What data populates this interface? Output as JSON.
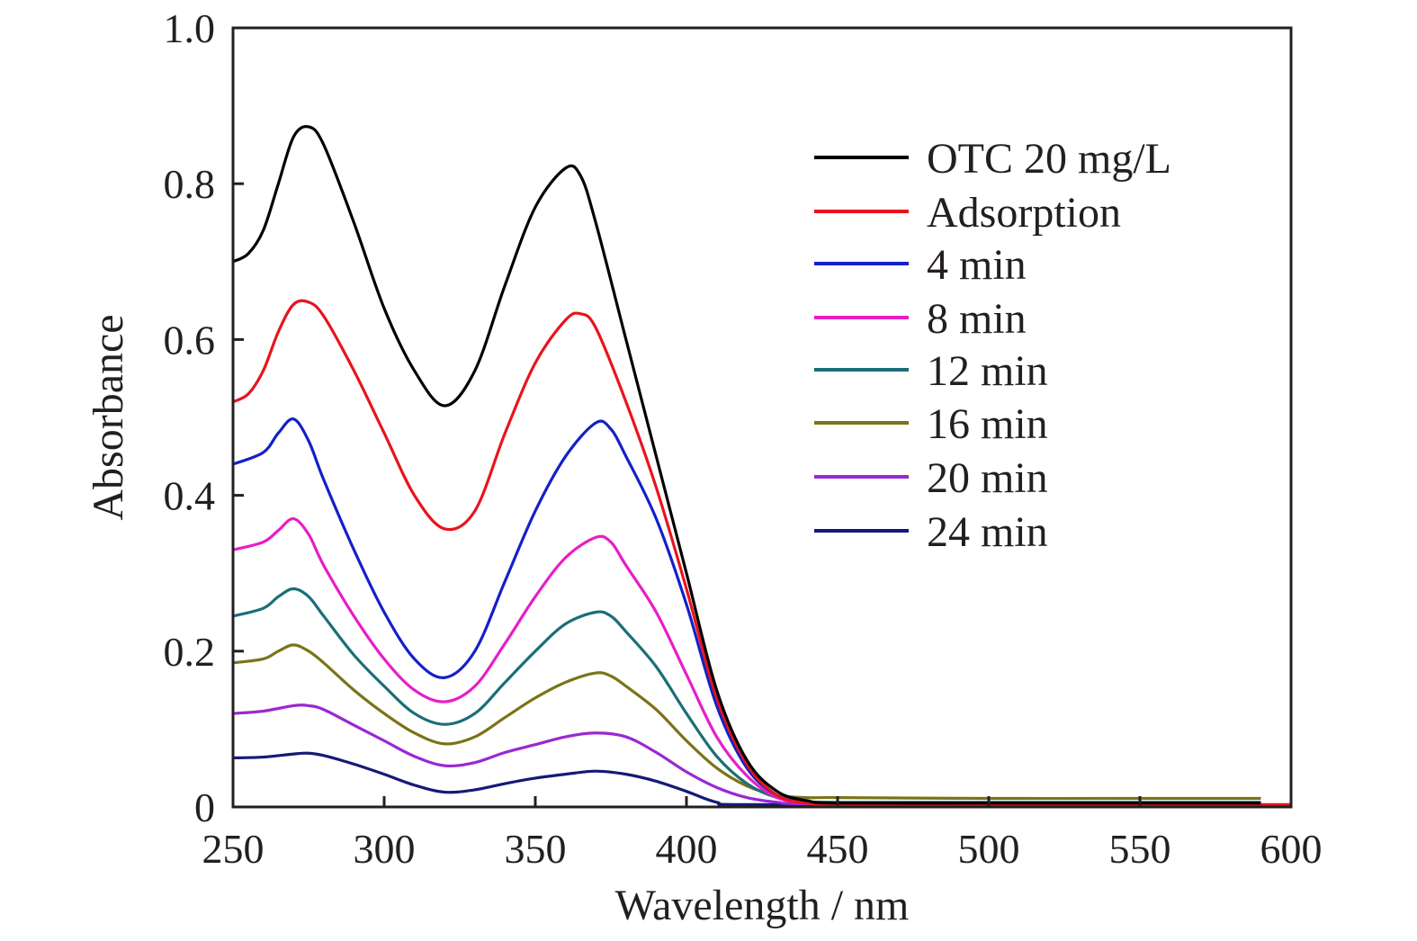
{
  "chart_data": {
    "type": "line",
    "xlabel": "Wavelength / nm",
    "ylabel": "Absorbance",
    "xlim": [
      250,
      600
    ],
    "ylim": [
      0,
      1.0
    ],
    "xticks": [
      250,
      300,
      350,
      400,
      450,
      500,
      550,
      600
    ],
    "xtick_labels": [
      "250",
      "300",
      "350",
      "400",
      "450",
      "500",
      "550",
      "600"
    ],
    "yticks": [
      0,
      0.2,
      0.4,
      0.6,
      0.8,
      1.0
    ],
    "ytick_labels": [
      "0",
      "0.2",
      "0.4",
      "0.6",
      "0.8",
      "1.0"
    ],
    "grid": false,
    "legend_position": "top-right",
    "series": [
      {
        "name": "OTC 20 mg/L",
        "color": "#000000",
        "x": [
          250,
          255,
          260,
          265,
          270,
          275,
          280,
          290,
          300,
          310,
          320,
          330,
          340,
          350,
          360,
          365,
          370,
          380,
          390,
          400,
          410,
          420,
          430,
          440,
          450,
          500,
          550,
          590
        ],
        "y": [
          0.7,
          0.71,
          0.74,
          0.8,
          0.86,
          0.873,
          0.85,
          0.75,
          0.64,
          0.56,
          0.515,
          0.56,
          0.67,
          0.77,
          0.82,
          0.81,
          0.75,
          0.6,
          0.45,
          0.3,
          0.15,
          0.06,
          0.02,
          0.008,
          0.005,
          0.005,
          0.005,
          0.005
        ]
      },
      {
        "name": "Adsorption",
        "color": "#e8141c",
        "x": [
          250,
          255,
          260,
          265,
          270,
          275,
          280,
          290,
          300,
          310,
          320,
          330,
          340,
          350,
          360,
          365,
          370,
          380,
          390,
          400,
          410,
          420,
          430,
          440,
          450,
          500,
          550,
          600
        ],
        "y": [
          0.52,
          0.53,
          0.56,
          0.61,
          0.645,
          0.648,
          0.63,
          0.56,
          0.48,
          0.4,
          0.357,
          0.38,
          0.48,
          0.57,
          0.625,
          0.633,
          0.615,
          0.52,
          0.41,
          0.28,
          0.14,
          0.055,
          0.015,
          0.005,
          0.003,
          0.003,
          0.003,
          0.003
        ]
      },
      {
        "name": "4 min",
        "color": "#1420c8",
        "x": [
          250,
          260,
          265,
          270,
          275,
          280,
          290,
          300,
          310,
          320,
          330,
          340,
          350,
          360,
          370,
          375,
          380,
          390,
          400,
          410,
          420,
          430,
          440,
          450,
          500,
          550,
          590
        ],
        "y": [
          0.44,
          0.455,
          0.48,
          0.498,
          0.47,
          0.42,
          0.33,
          0.25,
          0.19,
          0.166,
          0.2,
          0.29,
          0.38,
          0.45,
          0.493,
          0.485,
          0.45,
          0.37,
          0.26,
          0.13,
          0.05,
          0.015,
          0.006,
          0.005,
          0.005,
          0.005,
          0.005
        ]
      },
      {
        "name": "8 min",
        "color": "#e61ec8",
        "x": [
          250,
          260,
          265,
          270,
          275,
          280,
          290,
          300,
          310,
          320,
          330,
          340,
          350,
          360,
          370,
          375,
          380,
          390,
          400,
          410,
          420,
          430,
          440,
          450,
          500,
          550,
          590
        ],
        "y": [
          0.33,
          0.34,
          0.355,
          0.37,
          0.35,
          0.31,
          0.245,
          0.19,
          0.15,
          0.135,
          0.155,
          0.21,
          0.27,
          0.32,
          0.346,
          0.34,
          0.31,
          0.25,
          0.17,
          0.09,
          0.04,
          0.012,
          0.005,
          0.004,
          0.004,
          0.004,
          0.004
        ]
      },
      {
        "name": "12 min",
        "color": "#1a6e78",
        "x": [
          250,
          260,
          265,
          270,
          275,
          280,
          290,
          300,
          310,
          320,
          330,
          340,
          350,
          360,
          370,
          375,
          380,
          390,
          400,
          410,
          420,
          430,
          440,
          450,
          500,
          550,
          590
        ],
        "y": [
          0.245,
          0.255,
          0.27,
          0.28,
          0.27,
          0.245,
          0.195,
          0.155,
          0.12,
          0.106,
          0.12,
          0.16,
          0.2,
          0.235,
          0.25,
          0.245,
          0.225,
          0.18,
          0.12,
          0.065,
          0.03,
          0.012,
          0.007,
          0.006,
          0.006,
          0.006,
          0.006
        ]
      },
      {
        "name": "16 min",
        "color": "#7a7418",
        "x": [
          250,
          260,
          265,
          270,
          275,
          280,
          290,
          300,
          310,
          320,
          330,
          340,
          350,
          360,
          370,
          375,
          380,
          390,
          400,
          410,
          420,
          430,
          440,
          450,
          500,
          550,
          590
        ],
        "y": [
          0.185,
          0.19,
          0.2,
          0.208,
          0.2,
          0.185,
          0.15,
          0.12,
          0.095,
          0.081,
          0.09,
          0.115,
          0.14,
          0.16,
          0.172,
          0.168,
          0.155,
          0.125,
          0.085,
          0.05,
          0.027,
          0.015,
          0.012,
          0.012,
          0.011,
          0.011,
          0.011
        ]
      },
      {
        "name": "20 min",
        "color": "#9a28d2",
        "x": [
          250,
          260,
          270,
          275,
          280,
          290,
          300,
          310,
          320,
          330,
          340,
          350,
          360,
          370,
          380,
          390,
          400,
          410,
          420,
          430,
          440,
          500,
          590
        ],
        "y": [
          0.12,
          0.123,
          0.13,
          0.13,
          0.125,
          0.105,
          0.085,
          0.065,
          0.053,
          0.057,
          0.07,
          0.08,
          0.09,
          0.095,
          0.09,
          0.07,
          0.045,
          0.025,
          0.012,
          0.006,
          0.004,
          0.004,
          0.004
        ]
      },
      {
        "name": "24 min",
        "color": "#141a78",
        "x": [
          250,
          260,
          270,
          275,
          280,
          290,
          300,
          310,
          320,
          330,
          340,
          350,
          360,
          370,
          380,
          390,
          400,
          410,
          420,
          500,
          590
        ],
        "y": [
          0.063,
          0.064,
          0.068,
          0.069,
          0.066,
          0.055,
          0.042,
          0.028,
          0.019,
          0.022,
          0.03,
          0.037,
          0.042,
          0.046,
          0.042,
          0.033,
          0.02,
          0.006,
          0.003,
          0.003,
          0.003
        ]
      }
    ]
  }
}
